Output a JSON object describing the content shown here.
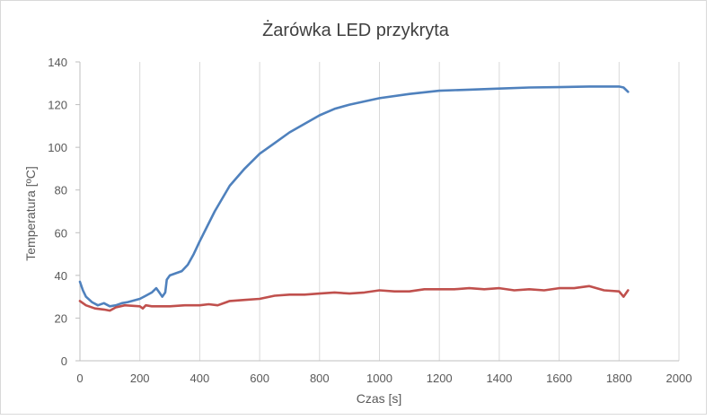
{
  "chart_data": {
    "type": "line",
    "title": "Żarówka LED przykryta",
    "xlabel": "Czas [s]",
    "ylabel": "Temperatura [ºC]",
    "xlim": [
      0,
      2000
    ],
    "ylim": [
      0,
      140
    ],
    "x_ticks": [
      0,
      200,
      400,
      600,
      800,
      1000,
      1200,
      1400,
      1600,
      1800,
      2000
    ],
    "y_ticks": [
      0,
      20,
      40,
      60,
      80,
      100,
      120,
      140
    ],
    "grid": "vertical",
    "legend": "none",
    "series": [
      {
        "color": "#4f81bd",
        "x": [
          0,
          10,
          20,
          40,
          60,
          80,
          100,
          120,
          140,
          160,
          200,
          220,
          240,
          255,
          265,
          275,
          285,
          290,
          300,
          320,
          340,
          360,
          380,
          400,
          450,
          500,
          550,
          600,
          650,
          700,
          750,
          800,
          850,
          900,
          950,
          1000,
          1100,
          1200,
          1300,
          1400,
          1500,
          1600,
          1700,
          1800,
          1815,
          1830
        ],
        "y": [
          37,
          33,
          30,
          27.5,
          26,
          27,
          25.5,
          26,
          27,
          27.5,
          29,
          30.5,
          32,
          34,
          32,
          30,
          32,
          38,
          40,
          41,
          42,
          45,
          50,
          56,
          70,
          82,
          90,
          97,
          102,
          107,
          111,
          115,
          118,
          120,
          121.5,
          123,
          125,
          126.5,
          127,
          127.5,
          128,
          128.2,
          128.5,
          128.5,
          128,
          126
        ]
      },
      {
        "color": "#c0504d",
        "x": [
          0,
          20,
          50,
          80,
          100,
          120,
          150,
          200,
          210,
          220,
          240,
          260,
          300,
          350,
          400,
          430,
          460,
          500,
          550,
          600,
          650,
          700,
          750,
          800,
          850,
          900,
          950,
          1000,
          1050,
          1100,
          1150,
          1200,
          1250,
          1300,
          1350,
          1400,
          1450,
          1500,
          1550,
          1600,
          1650,
          1700,
          1750,
          1800,
          1815,
          1830
        ],
        "y": [
          28,
          26,
          24.5,
          24,
          23.5,
          25,
          26,
          25.5,
          24.5,
          26,
          25.5,
          25.5,
          25.5,
          26,
          26,
          26.5,
          26,
          28,
          28.5,
          29,
          30.5,
          31,
          31,
          31.5,
          32,
          31.5,
          32,
          33,
          32.5,
          32.5,
          33.5,
          33.5,
          33.5,
          34,
          33.5,
          34,
          33,
          33.5,
          33,
          34,
          34,
          35,
          33,
          32.5,
          30,
          33
        ]
      }
    ]
  }
}
